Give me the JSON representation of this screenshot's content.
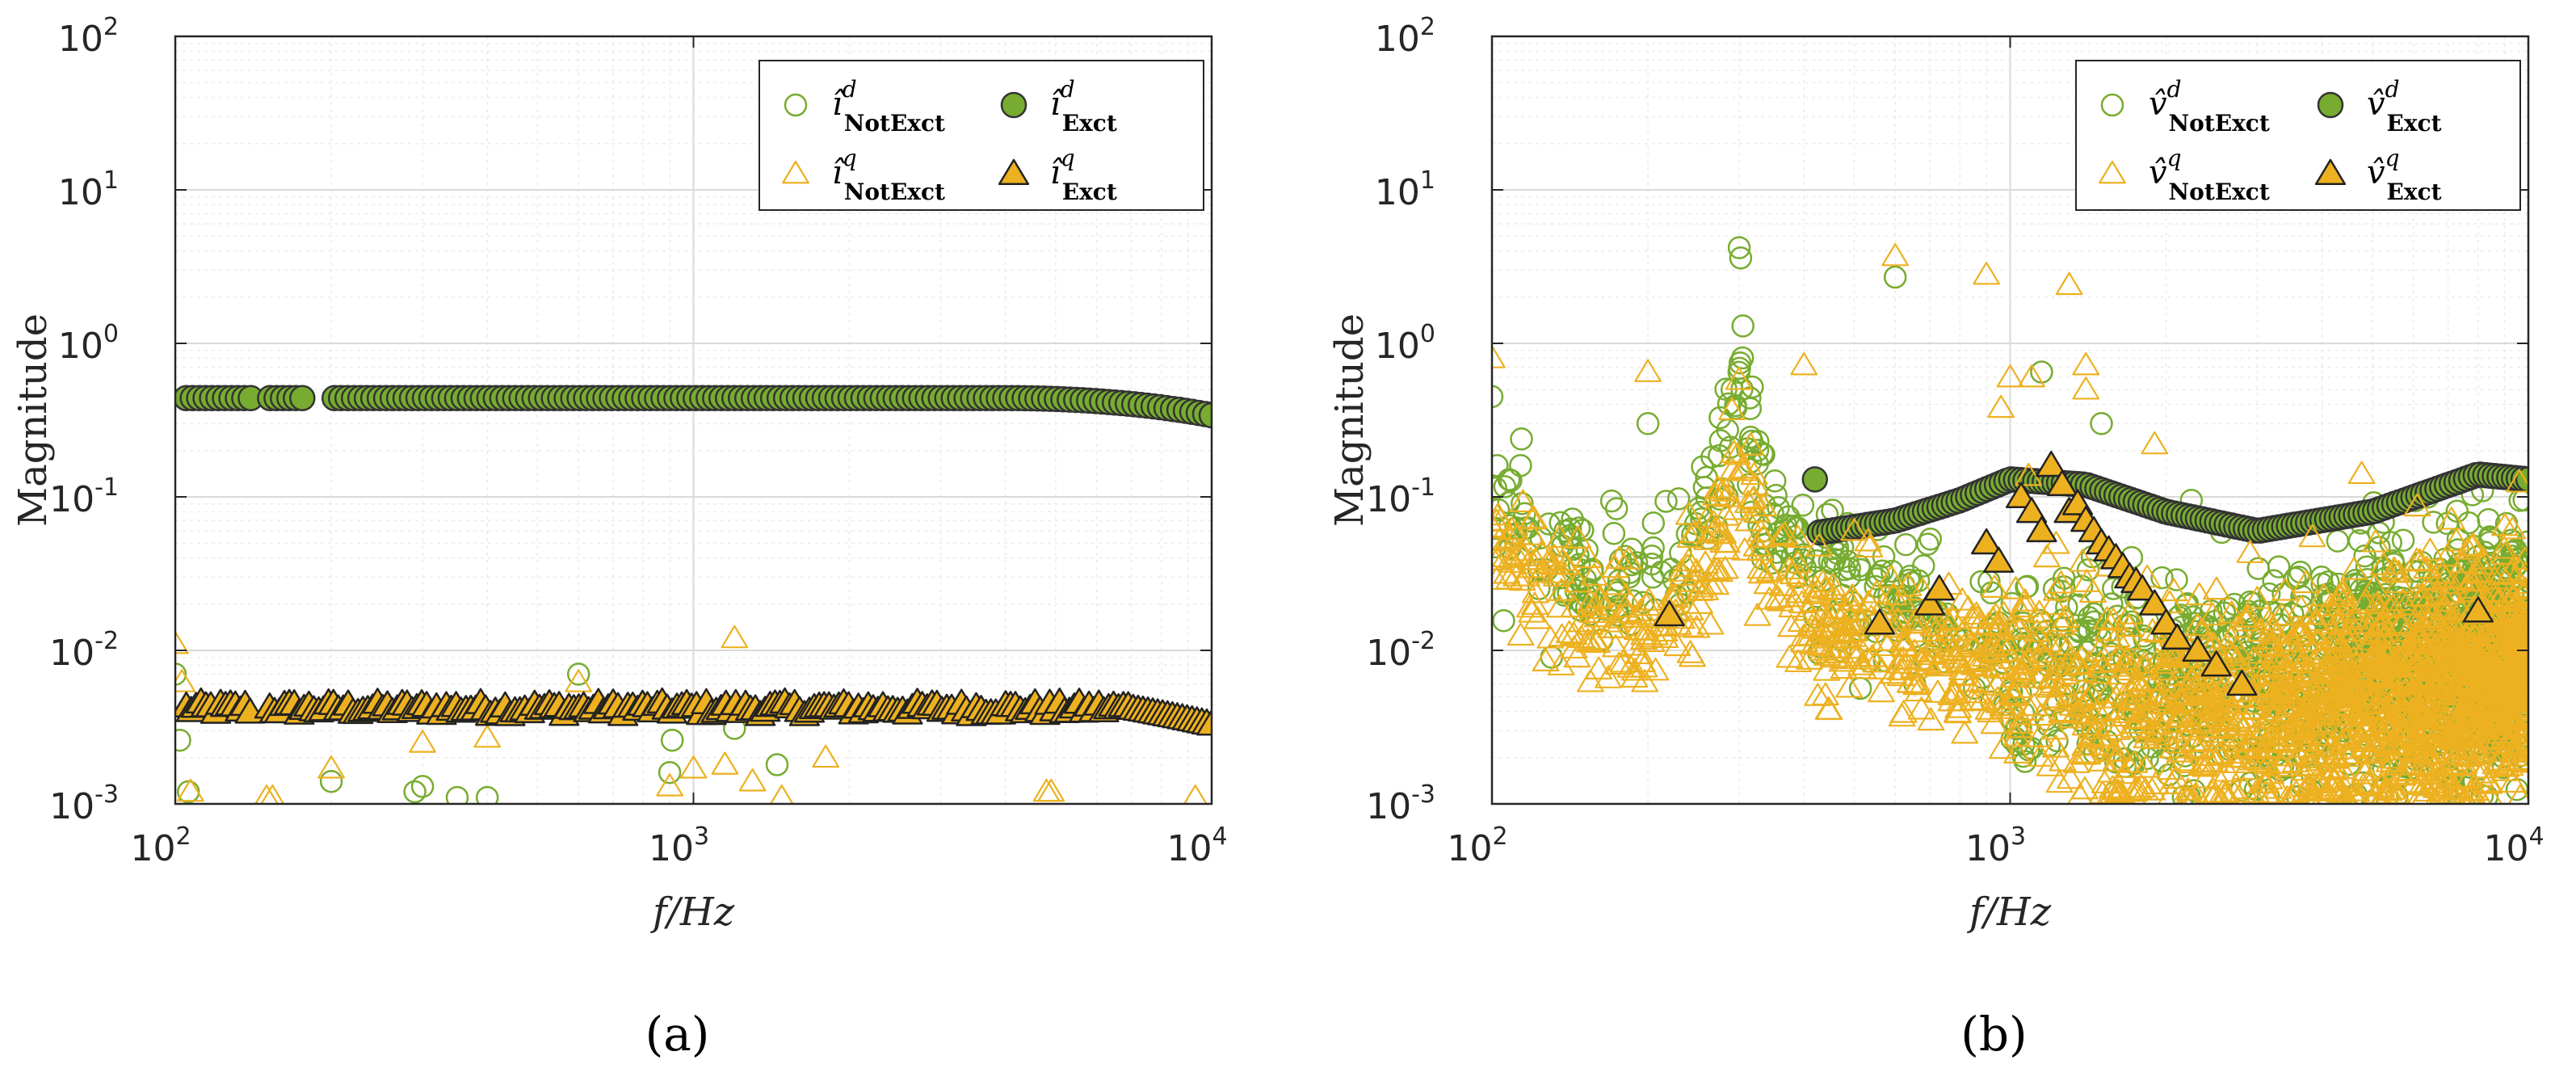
{
  "colors": {
    "green_fill": "#77ac30",
    "green_stroke": "#333333",
    "green_open": "#77ac30",
    "yellow_fill": "#edb120",
    "yellow_open": "#edb120",
    "grid": "#d9d9d9",
    "minor_grid": "#ececec",
    "axis": "#262626"
  },
  "chart_data": [
    {
      "type": "scatter",
      "panel_label": "(a)",
      "xscale": "log",
      "yscale": "log",
      "xlim": [
        100,
        10000
      ],
      "ylim": [
        0.001,
        100
      ],
      "xlabel": "f/Hz",
      "ylabel": "Magnitude",
      "xticks": [
        {
          "base": "10",
          "exp": "2"
        },
        {
          "base": "10",
          "exp": "3"
        },
        {
          "base": "10",
          "exp": "4"
        }
      ],
      "yticks": [
        {
          "base": "10",
          "exp": "-3"
        },
        {
          "base": "10",
          "exp": "-2"
        },
        {
          "base": "10",
          "exp": "-1"
        },
        {
          "base": "10",
          "exp": "0"
        },
        {
          "base": "10",
          "exp": "1"
        },
        {
          "base": "10",
          "exp": "2"
        }
      ],
      "grid": true,
      "legend_position": "top-right",
      "legend": [
        {
          "symbol": "î",
          "sup": "d",
          "sub": "NotExct",
          "marker": "circle-open"
        },
        {
          "symbol": "î",
          "sup": "d",
          "sub": "Exct",
          "marker": "circle-filled"
        },
        {
          "symbol": "î",
          "sup": "q",
          "sub": "NotExct",
          "marker": "triangle-open"
        },
        {
          "symbol": "î",
          "sup": "q",
          "sub": "Exct",
          "marker": "triangle-filled"
        }
      ],
      "series": [
        {
          "name": "i_d NotExct",
          "marker": "circle-open",
          "x": [
            100,
            102,
            106,
            200,
            290,
            300,
            350,
            400,
            600,
            900,
            910,
            1200,
            1450
          ],
          "y": [
            0.007,
            0.0026,
            0.0012,
            0.0014,
            0.0012,
            0.0013,
            0.0011,
            0.0011,
            0.007,
            0.0016,
            0.0026,
            0.0031,
            0.0018
          ]
        },
        {
          "name": "i_d Exct",
          "marker": "circle-filled",
          "x_range": [
            105,
            10000
          ],
          "x_gaps": [
            [
              140,
              150
            ],
            [
              180,
              200
            ]
          ],
          "count": 160,
          "y_start": 0.44,
          "y_end": 0.34,
          "y_knee": 4000
        },
        {
          "name": "i_q NotExct",
          "marker": "triangle-open",
          "x": [
            100,
            103,
            107,
            150,
            154,
            200,
            300,
            400,
            600,
            900,
            1000,
            1150,
            1200,
            1300,
            1480,
            1800,
            4800,
            4900,
            9300
          ],
          "y": [
            0.011,
            0.0062,
            0.0012,
            0.0011,
            0.0011,
            0.0017,
            0.0025,
            0.0027,
            0.0062,
            0.0013,
            0.0017,
            0.0018,
            0.012,
            0.0014,
            0.0011,
            0.002,
            0.0012,
            0.0012,
            0.0011
          ]
        },
        {
          "name": "i_q Exct",
          "marker": "triangle-filled",
          "x_range": [
            105,
            10000
          ],
          "x_gaps": [
            [
              140,
              150
            ]
          ],
          "count": 210,
          "y_base": 0.0042,
          "y_amp": 0.0004,
          "y_end": 0.0033
        }
      ]
    },
    {
      "type": "scatter",
      "panel_label": "(b)",
      "xscale": "log",
      "yscale": "log",
      "xlim": [
        100,
        10000
      ],
      "ylim": [
        0.001,
        100
      ],
      "xlabel": "f/Hz",
      "ylabel": "Magnitude",
      "xticks": [
        {
          "base": "10",
          "exp": "2"
        },
        {
          "base": "10",
          "exp": "3"
        },
        {
          "base": "10",
          "exp": "4"
        }
      ],
      "yticks": [
        {
          "base": "10",
          "exp": "-3"
        },
        {
          "base": "10",
          "exp": "-2"
        },
        {
          "base": "10",
          "exp": "-1"
        },
        {
          "base": "10",
          "exp": "0"
        },
        {
          "base": "10",
          "exp": "1"
        },
        {
          "base": "10",
          "exp": "2"
        }
      ],
      "grid": true,
      "legend_position": "top-right",
      "legend": [
        {
          "symbol": "v̂",
          "sup": "d",
          "sub": "NotExct",
          "marker": "circle-open"
        },
        {
          "symbol": "v̂",
          "sup": "d",
          "sub": "Exct",
          "marker": "circle-filled"
        },
        {
          "symbol": "v̂",
          "sup": "q",
          "sub": "NotExct",
          "marker": "triangle-open"
        },
        {
          "symbol": "v̂",
          "sup": "q",
          "sub": "Exct",
          "marker": "triangle-filled"
        }
      ],
      "series": [
        {
          "name": "v_d NotExct",
          "marker": "circle-open",
          "profile": "resonance",
          "x_range": [
            100,
            10000
          ],
          "count": 1400,
          "anchors": [
            [
              100,
              0.12
            ],
            [
              130,
              0.03
            ],
            [
              200,
              0.028
            ],
            [
              260,
              0.07
            ],
            [
              300,
              0.5
            ],
            [
              340,
              0.07
            ],
            [
              450,
              0.025
            ],
            [
              700,
              0.015
            ],
            [
              1000,
              0.01
            ],
            [
              1500,
              0.006
            ],
            [
              3000,
              0.006
            ],
            [
              10000,
              0.012
            ]
          ],
          "outliers_x": [
            100,
            200,
            300,
            302,
            305,
            600,
            1150,
            1500,
            3300,
            3600
          ],
          "outliers_y": [
            0.45,
            0.3,
            4.2,
            3.6,
            1.3,
            2.7,
            0.65,
            0.3,
            0.035,
            0.03
          ]
        },
        {
          "name": "v_d Exct",
          "marker": "circle-filled",
          "x_range": [
            420,
            10000
          ],
          "count": 150,
          "anchors": [
            [
              420,
              0.058
            ],
            [
              600,
              0.07
            ],
            [
              800,
              0.095
            ],
            [
              1000,
              0.13
            ],
            [
              1400,
              0.12
            ],
            [
              2000,
              0.08
            ],
            [
              3000,
              0.06
            ],
            [
              5000,
              0.08
            ],
            [
              8000,
              0.14
            ],
            [
              10000,
              0.13
            ]
          ]
        },
        {
          "name": "v_q NotExct",
          "marker": "triangle-open",
          "profile": "resonance",
          "x_range": [
            100,
            10000
          ],
          "count": 1900,
          "anchors": [
            [
              100,
              0.06
            ],
            [
              140,
              0.02
            ],
            [
              200,
              0.012
            ],
            [
              260,
              0.03
            ],
            [
              300,
              0.2
            ],
            [
              340,
              0.03
            ],
            [
              450,
              0.012
            ],
            [
              800,
              0.01
            ],
            [
              1000,
              0.008
            ],
            [
              1500,
              0.004
            ],
            [
              3000,
              0.004
            ],
            [
              10000,
              0.007
            ]
          ],
          "outliers_x": [
            100,
            200,
            400,
            600,
            900,
            960,
            1000,
            1100,
            1300,
            1400,
            1400,
            1900,
            500
          ],
          "outliers_y": [
            0.8,
            0.65,
            0.72,
            3.7,
            2.8,
            0.38,
            0.6,
            0.6,
            2.4,
            0.72,
            0.5,
            0.22,
            0.06
          ]
        },
        {
          "name": "v_q Exct",
          "marker": "triangle-filled",
          "x": [
            220,
            560,
            700,
            730,
            900,
            950,
            1050,
            1100,
            1150,
            1200,
            1260,
            1300,
            1350,
            1400,
            1450,
            1500,
            1550,
            1600,
            1650,
            1700,
            1750,
            1800,
            1900,
            2000,
            2100,
            2300,
            2500,
            2800,
            8000
          ],
          "y": [
            0.017,
            0.015,
            0.02,
            0.025,
            0.05,
            0.038,
            0.1,
            0.08,
            0.06,
            0.16,
            0.12,
            0.08,
            0.09,
            0.07,
            0.06,
            0.05,
            0.045,
            0.04,
            0.035,
            0.03,
            0.028,
            0.025,
            0.02,
            0.015,
            0.012,
            0.01,
            0.008,
            0.006,
            0.018
          ]
        }
      ]
    }
  ]
}
